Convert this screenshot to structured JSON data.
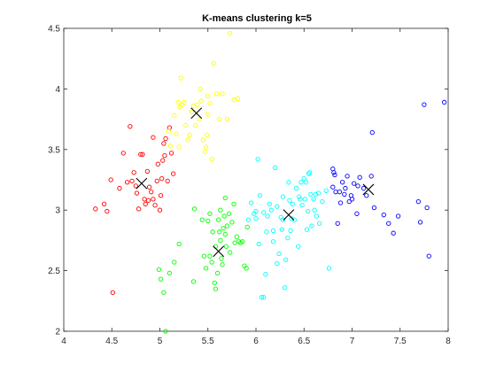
{
  "chart_data": {
    "type": "scatter",
    "title": "K-means clustering k=5",
    "xlabel": "",
    "ylabel": "",
    "xlim": [
      4,
      8
    ],
    "ylim": [
      2,
      4.5
    ],
    "x_ticks": [
      "4",
      "4.5",
      "5",
      "5.5",
      "6",
      "6.5",
      "7",
      "7.5",
      "8"
    ],
    "y_ticks": [
      "2",
      "2.5",
      "3",
      "3.5",
      "4",
      "4.5"
    ],
    "grid": false,
    "legend": "none",
    "series": [
      {
        "color": "#ff0000",
        "marker": "circle",
        "points": [
          [
            4.33,
            3.01
          ],
          [
            4.42,
            3.05
          ],
          [
            4.45,
            2.99
          ],
          [
            4.49,
            3.25
          ],
          [
            4.51,
            2.32
          ],
          [
            4.58,
            3.18
          ],
          [
            4.62,
            3.47
          ],
          [
            4.66,
            3.23
          ],
          [
            4.69,
            3.69
          ],
          [
            4.71,
            3.24
          ],
          [
            4.73,
            3.31
          ],
          [
            4.75,
            3.2
          ],
          [
            4.78,
            3.01
          ],
          [
            4.8,
            3.46
          ],
          [
            4.82,
            3.46
          ],
          [
            4.84,
            3.09
          ],
          [
            4.85,
            3.05
          ],
          [
            4.87,
            3.32
          ],
          [
            4.89,
            3.19
          ],
          [
            4.91,
            3.15
          ],
          [
            4.93,
            3.09
          ],
          [
            4.93,
            3.6
          ],
          [
            4.95,
            3.04
          ],
          [
            4.97,
            3.24
          ],
          [
            4.98,
            3.38
          ],
          [
            5.0,
            3.0
          ],
          [
            5.01,
            3.12
          ],
          [
            5.03,
            3.41
          ],
          [
            5.04,
            3.55
          ],
          [
            5.05,
            3.45
          ],
          [
            5.06,
            3.59
          ],
          [
            5.08,
            3.24
          ],
          [
            5.1,
            3.68
          ],
          [
            5.12,
            3.47
          ],
          [
            5.14,
            3.3
          ],
          [
            4.88,
            3.08
          ],
          [
            4.76,
            3.14
          ],
          [
            5.02,
            3.26
          ]
        ]
      },
      {
        "color": "#ffff00",
        "marker": "circle",
        "points": [
          [
            5.09,
            3.65
          ],
          [
            5.11,
            3.53
          ],
          [
            5.15,
            3.78
          ],
          [
            5.17,
            3.63
          ],
          [
            5.19,
            3.89
          ],
          [
            5.21,
            3.85
          ],
          [
            5.23,
            3.87
          ],
          [
            5.25,
            3.89
          ],
          [
            5.22,
            4.09
          ],
          [
            5.27,
            3.7
          ],
          [
            5.29,
            3.58
          ],
          [
            5.31,
            3.62
          ],
          [
            5.33,
            3.81
          ],
          [
            5.35,
            3.86
          ],
          [
            5.37,
            3.7
          ],
          [
            5.39,
            3.87
          ],
          [
            5.41,
            3.75
          ],
          [
            5.43,
            3.9
          ],
          [
            5.45,
            3.58
          ],
          [
            5.47,
            3.48
          ],
          [
            5.48,
            3.52
          ],
          [
            5.49,
            3.62
          ],
          [
            5.5,
            3.94
          ],
          [
            5.52,
            3.88
          ],
          [
            5.54,
            3.42
          ],
          [
            5.56,
            4.21
          ],
          [
            5.59,
            3.96
          ],
          [
            5.62,
            3.75
          ],
          [
            5.65,
            3.96
          ],
          [
            5.7,
            3.75
          ],
          [
            5.73,
            4.46
          ],
          [
            5.77,
            3.91
          ],
          [
            5.81,
            3.92
          ],
          [
            5.42,
            4.0
          ],
          [
            5.2,
            3.52
          ],
          [
            5.5,
            3.79
          ]
        ]
      },
      {
        "color": "#00ff00",
        "marker": "circle",
        "points": [
          [
            4.99,
            2.51
          ],
          [
            5.01,
            2.43
          ],
          [
            5.04,
            2.32
          ],
          [
            5.06,
            2.0
          ],
          [
            5.1,
            2.48
          ],
          [
            5.15,
            2.57
          ],
          [
            5.2,
            2.72
          ],
          [
            5.35,
            2.41
          ],
          [
            5.36,
            3.01
          ],
          [
            5.44,
            2.92
          ],
          [
            5.48,
            2.52
          ],
          [
            5.5,
            2.91
          ],
          [
            5.52,
            2.62
          ],
          [
            5.54,
            2.57
          ],
          [
            5.55,
            2.82
          ],
          [
            5.57,
            2.4
          ],
          [
            5.58,
            2.35
          ],
          [
            5.6,
            2.48
          ],
          [
            5.61,
            2.92
          ],
          [
            5.62,
            2.82
          ],
          [
            5.63,
            2.75
          ],
          [
            5.64,
            2.6
          ],
          [
            5.65,
            2.55
          ],
          [
            5.66,
            2.85
          ],
          [
            5.67,
            2.95
          ],
          [
            5.68,
            2.8
          ],
          [
            5.69,
            2.7
          ],
          [
            5.7,
            2.87
          ],
          [
            5.72,
            2.97
          ],
          [
            5.73,
            2.65
          ],
          [
            5.75,
            2.9
          ],
          [
            5.77,
            3.05
          ],
          [
            5.78,
            2.73
          ],
          [
            5.8,
            2.78
          ],
          [
            5.82,
            2.74
          ],
          [
            5.84,
            2.73
          ],
          [
            5.86,
            2.74
          ],
          [
            5.88,
            2.54
          ],
          [
            5.9,
            2.52
          ],
          [
            5.68,
            3.1
          ],
          [
            5.52,
            2.97
          ],
          [
            5.58,
            2.7
          ],
          [
            5.46,
            2.62
          ],
          [
            5.91,
            2.86
          ],
          [
            5.63,
            3.0
          ]
        ]
      },
      {
        "color": "#00ffff",
        "marker": "circle",
        "points": [
          [
            5.92,
            2.92
          ],
          [
            5.95,
            3.06
          ],
          [
            5.98,
            2.97
          ],
          [
            6.0,
            2.99
          ],
          [
            6.02,
            3.42
          ],
          [
            6.04,
            3.12
          ],
          [
            6.06,
            2.28
          ],
          [
            6.08,
            2.28
          ],
          [
            6.1,
            2.47
          ],
          [
            6.12,
            2.95
          ],
          [
            6.14,
            3.05
          ],
          [
            6.16,
            3.0
          ],
          [
            6.18,
            2.74
          ],
          [
            6.2,
            3.35
          ],
          [
            6.22,
            2.56
          ],
          [
            6.24,
            2.64
          ],
          [
            6.26,
            2.94
          ],
          [
            6.28,
            3.11
          ],
          [
            6.3,
            2.36
          ],
          [
            6.31,
            2.59
          ],
          [
            6.33,
            2.77
          ],
          [
            6.35,
            3.08
          ],
          [
            6.36,
            2.83
          ],
          [
            6.38,
            3.05
          ],
          [
            6.4,
            2.92
          ],
          [
            6.42,
            3.18
          ],
          [
            6.44,
            2.7
          ],
          [
            6.46,
            3.09
          ],
          [
            6.47,
            3.23
          ],
          [
            6.48,
            3.04
          ],
          [
            6.5,
            3.26
          ],
          [
            6.52,
            3.23
          ],
          [
            6.54,
            2.99
          ],
          [
            6.55,
            3.3
          ],
          [
            6.56,
            3.31
          ],
          [
            6.58,
            2.87
          ],
          [
            6.6,
            3.09
          ],
          [
            6.61,
            3.0
          ],
          [
            6.63,
            2.95
          ],
          [
            6.65,
            3.14
          ],
          [
            6.66,
            2.89
          ],
          [
            6.69,
            3.07
          ],
          [
            6.73,
            3.16
          ],
          [
            6.76,
            2.52
          ],
          [
            6.0,
            2.93
          ],
          [
            6.11,
            2.82
          ],
          [
            6.27,
            2.84
          ],
          [
            6.37,
            2.93
          ],
          [
            6.53,
            2.84
          ],
          [
            6.45,
            3.11
          ],
          [
            6.22,
            3.03
          ],
          [
            6.34,
            3.23
          ],
          [
            6.03,
            2.72
          ],
          [
            6.62,
            3.13
          ],
          [
            6.18,
            2.83
          ],
          [
            6.08,
            2.98
          ],
          [
            6.28,
            2.92
          ],
          [
            6.51,
            3.09
          ],
          [
            6.57,
            3.13
          ]
        ]
      },
      {
        "color": "#0000ff",
        "marker": "circle",
        "points": [
          [
            6.8,
            3.34
          ],
          [
            6.81,
            3.31
          ],
          [
            6.82,
            3.29
          ],
          [
            6.8,
            3.19
          ],
          [
            6.83,
            3.15
          ],
          [
            6.85,
            2.89
          ],
          [
            6.88,
            3.06
          ],
          [
            6.9,
            3.23
          ],
          [
            6.92,
            3.13
          ],
          [
            6.95,
            3.28
          ],
          [
            6.97,
            3.07
          ],
          [
            7.0,
            3.09
          ],
          [
            7.02,
            3.22
          ],
          [
            7.05,
            2.97
          ],
          [
            7.08,
            3.27
          ],
          [
            7.12,
            3.18
          ],
          [
            7.2,
            3.28
          ],
          [
            7.21,
            3.64
          ],
          [
            7.23,
            3.02
          ],
          [
            7.33,
            2.96
          ],
          [
            7.38,
            2.89
          ],
          [
            7.43,
            2.81
          ],
          [
            7.48,
            2.95
          ],
          [
            7.71,
            2.9
          ],
          [
            7.75,
            3.87
          ],
          [
            7.78,
            3.02
          ],
          [
            7.8,
            2.62
          ],
          [
            7.96,
            3.89
          ],
          [
            7.69,
            3.07
          ],
          [
            6.87,
            3.15
          ],
          [
            6.93,
            3.18
          ],
          [
            7.15,
            3.12
          ],
          [
            7.06,
            3.2
          ],
          [
            6.99,
            3.12
          ]
        ]
      }
    ],
    "centroids": {
      "color": "#000000",
      "marker": "x",
      "points": [
        [
          4.81,
          3.22
        ],
        [
          5.38,
          3.8
        ],
        [
          5.61,
          2.66
        ],
        [
          6.34,
          2.96
        ],
        [
          7.17,
          3.17
        ]
      ]
    }
  }
}
